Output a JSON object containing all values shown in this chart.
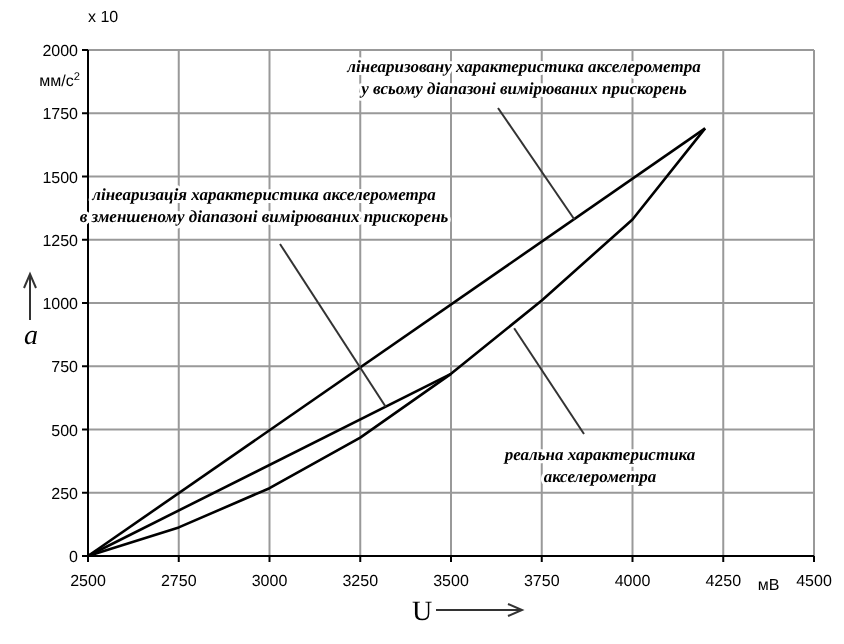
{
  "chart_data": {
    "type": "line",
    "xlabel": "U",
    "ylabel": "a",
    "xlim": [
      2500,
      4500
    ],
    "xticks": [
      2500,
      2750,
      3000,
      3250,
      3500,
      3750,
      4000,
      4250,
      4500
    ],
    "ylim": [
      0,
      2000
    ],
    "yticks": [
      0,
      250,
      500,
      750,
      1000,
      1250,
      1500,
      1750,
      2000
    ],
    "grid": true,
    "marker": "none",
    "line_style": "solid",
    "color": "#000000",
    "series": [
      {
        "x": [
          2500,
          4200
        ],
        "values": [
          0,
          1690
        ]
      },
      {
        "x": [
          2500,
          3500
        ],
        "values": [
          0,
          720
        ]
      },
      {
        "x": [
          2500,
          2750,
          3000,
          3250,
          3500,
          3750,
          4000,
          4200
        ],
        "values": [
          0,
          113,
          268,
          468,
          720,
          1010,
          1330,
          1690
        ]
      }
    ],
    "annotations": [
      {
        "text": "лінеаризовану характеристика акселерометра у всьому діапазоні вимірюваних прискорень",
        "x": 3840,
        "y": 1330
      },
      {
        "text": "лінеаризація характеристика акселерометра в зменшеному діапазоні вимірюваних прискорень",
        "x": 3320,
        "y": 590
      },
      {
        "text": "реальна характеристика акселерометра",
        "x": 3674,
        "y": 900
      },
      "x 10",
      "мм/с$^{2}$",
      "мВ"
    ]
  }
}
